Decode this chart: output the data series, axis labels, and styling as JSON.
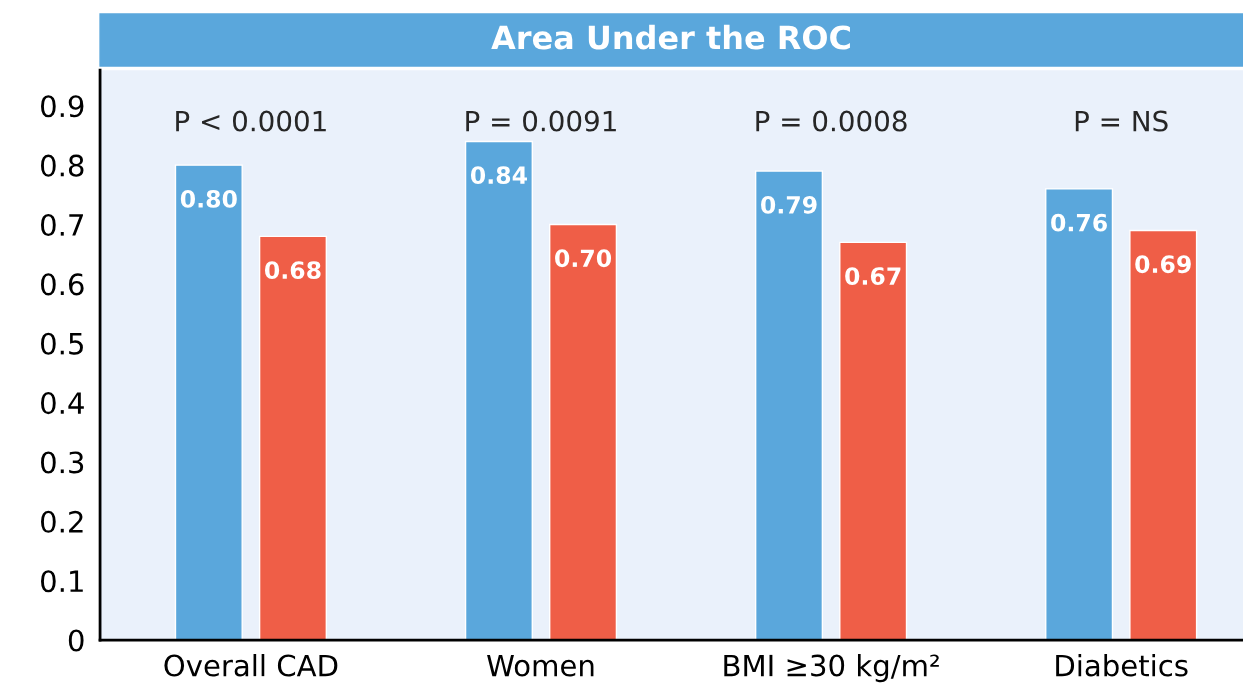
{
  "chart_data": {
    "type": "bar",
    "title": "Area Under the ROC",
    "categories": [
      "Overall CAD",
      "Women",
      "BMI ≥30 kg/m²",
      "Diabetics"
    ],
    "series": [
      {
        "color": "#5aa7dc",
        "values": [
          0.8,
          0.84,
          0.79,
          0.76
        ],
        "value_labels": [
          "0.80",
          "0.84",
          "0.79",
          "0.76"
        ]
      },
      {
        "color": "#ef5e47",
        "values": [
          0.68,
          0.7,
          0.67,
          0.69
        ],
        "value_labels": [
          "0.68",
          "0.70",
          "0.67",
          "0.69"
        ]
      }
    ],
    "ylim": [
      0,
      0.96
    ],
    "yticks": [
      {
        "value": 0,
        "label": "0"
      },
      0.1,
      0.2,
      0.3,
      0.4,
      0.5,
      0.6,
      0.7,
      0.8,
      0.9
    ],
    "grid": false,
    "legend": false,
    "annotations": [
      "P < 0.0001",
      "P = 0.0091",
      "P = 0.0008",
      "P = NS"
    ]
  }
}
